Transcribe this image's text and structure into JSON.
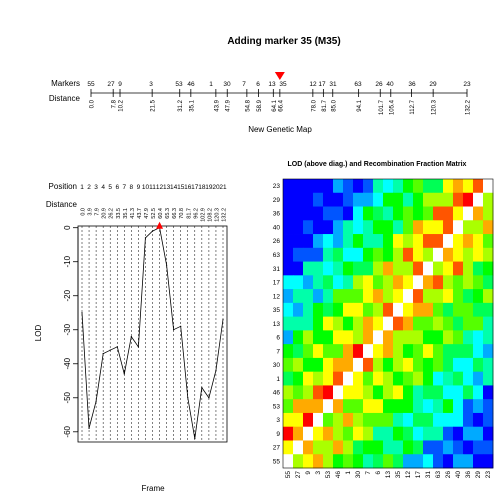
{
  "header": {
    "title": "Adding marker 35 (M35)",
    "markers_label": "Markers",
    "distance_label": "Distance",
    "map_xlabel": "New Genetic Map",
    "marker_names": [
      "55",
      "27",
      "9",
      "3",
      "53",
      "46",
      "1",
      "30",
      "7",
      "6",
      "13",
      "35",
      "12",
      "17",
      "31",
      "63",
      "26",
      "40",
      "36",
      "29",
      "23"
    ],
    "distances": [
      0.0,
      7.8,
      10.2,
      21.5,
      31.2,
      35.1,
      43.9,
      47.9,
      54.8,
      58.9,
      64.1,
      66.4,
      78.0,
      81.7,
      85.0,
      94.1,
      101.7,
      105.4,
      112.7,
      120.3,
      132.2
    ],
    "distance_labels": [
      "0.0",
      "7.8",
      "10.2",
      "21.5",
      "31.2",
      "35.1",
      "43.9",
      "47.9",
      "54.8",
      "58.9",
      "64.1",
      "66.4",
      "78.0",
      "81.7",
      "85.0",
      "94.1",
      "101.7",
      "105.4",
      "112.7",
      "120.3",
      "132.2"
    ],
    "added_marker_index": 11,
    "added_marker_color": "#ff0000"
  },
  "chart_data": [
    {
      "type": "line",
      "title": "",
      "xlabel": "Frame",
      "ylabel": "LOD",
      "position_label": "Position",
      "distance_label": "Distance",
      "positions": [
        "1",
        "2",
        "3",
        "4",
        "5",
        "6",
        "7",
        "8",
        "9",
        "10",
        "11",
        "12",
        "13",
        "14",
        "15",
        "16",
        "17",
        "18",
        "19",
        "20",
        "21"
      ],
      "position_distances": [
        "0.0",
        "3.9",
        "7.9",
        "20.9",
        "26.2",
        "33.5",
        "35.1",
        "41.3",
        "43.7",
        "47.9",
        "52.5",
        "60.4",
        "65.3",
        "66.3",
        "70.8",
        "81.7",
        "96.2",
        "102.9",
        "108.2",
        "120.3",
        "132.2"
      ],
      "y": [
        -25,
        -59,
        -51,
        -37,
        -36,
        -35,
        -43,
        -32,
        -35,
        -3,
        -1,
        0,
        -11,
        -30,
        -29,
        -50,
        -62,
        -47,
        -50,
        -42,
        -27
      ],
      "ylim": [
        -63,
        0.5
      ],
      "yticks": [
        "0",
        "-10",
        "-20",
        "-30",
        "-40",
        "-50",
        "-60"
      ],
      "max_marker_color": "#ff0000"
    },
    {
      "type": "heatmap",
      "title": "LOD (above diag.) and Recombination Fraction Matrix",
      "row_labels": [
        "23",
        "29",
        "36",
        "40",
        "26",
        "63",
        "31",
        "17",
        "12",
        "35",
        "13",
        "6",
        "7",
        "30",
        "1",
        "46",
        "53",
        "3",
        "9",
        "27",
        "55"
      ],
      "col_labels": [
        "55",
        "27",
        "9",
        "3",
        "53",
        "46",
        "1",
        "30",
        "7",
        "6",
        "13",
        "35",
        "12",
        "17",
        "31",
        "63",
        "26",
        "40",
        "36",
        "29",
        "23"
      ],
      "diagonal_color": "#ffffff",
      "palette": [
        "#ff0000",
        "#ff5500",
        "#ffaa00",
        "#ffff00",
        "#aaff00",
        "#55ff00",
        "#00ff00",
        "#00ff55",
        "#00ffaa",
        "#00ffff",
        "#00aaff",
        "#0055ff",
        "#0000ff"
      ]
    }
  ]
}
